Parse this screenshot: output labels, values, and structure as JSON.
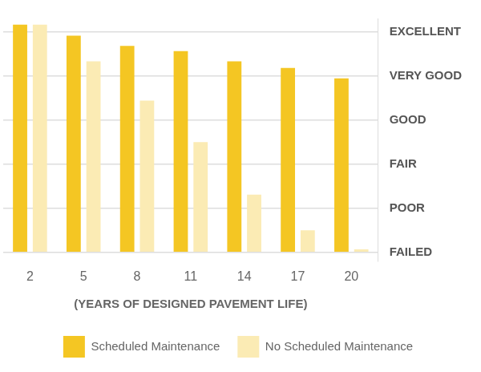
{
  "chart_data": {
    "type": "bar",
    "x_label": "(YEARS OF DESIGNED PAVEMENT LIFE)",
    "categories": [
      "2",
      "5",
      "8",
      "11",
      "14",
      "17",
      "20"
    ],
    "series": [
      {
        "name": "Scheduled Maintenance",
        "color": "#f4c623",
        "values": [
          5.16,
          4.91,
          4.68,
          4.56,
          4.33,
          4.18,
          3.94
        ]
      },
      {
        "name": "No Scheduled Maintenance",
        "color": "#fbebb4",
        "values": [
          5.16,
          4.33,
          3.44,
          2.5,
          1.31,
          0.5,
          0.07
        ]
      }
    ],
    "ylim": [
      -0.2,
      5.3
    ],
    "yticks": [
      {
        "value": 0,
        "label": "FAILED"
      },
      {
        "value": 1,
        "label": "POOR"
      },
      {
        "value": 2,
        "label": "FAIR"
      },
      {
        "value": 3,
        "label": "GOOD"
      },
      {
        "value": 4,
        "label": "VERY GOOD"
      },
      {
        "value": 5,
        "label": "EXCELLENT"
      }
    ],
    "grid": true,
    "legend": "bottom"
  }
}
